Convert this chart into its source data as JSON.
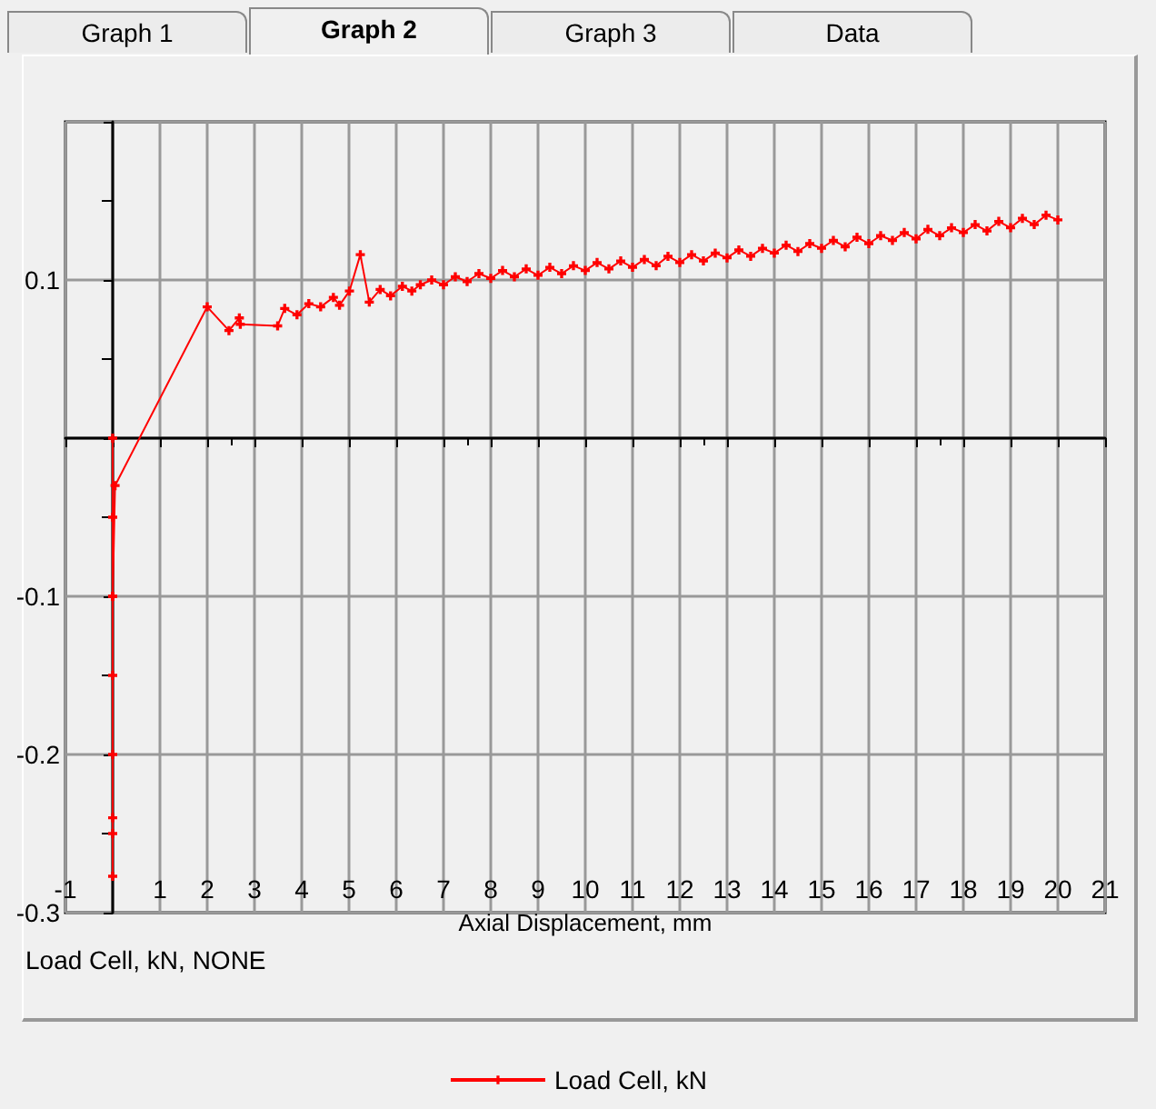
{
  "chart_data": {
    "type": "line",
    "xlabel": "Axial Displacement, mm",
    "ylabel": "Load Cell, kN, NONE",
    "annotations": [
      "Graph 1",
      "Graph 2",
      "Graph 3",
      "Data"
    ],
    "xlim": [
      -1,
      21
    ],
    "xticks": [
      -1,
      {
        "value": 0,
        "label": null
      },
      1,
      2,
      3,
      4,
      5,
      6,
      7,
      8,
      9,
      10,
      11,
      12,
      13,
      14,
      15,
      16,
      17,
      18,
      19,
      20,
      21
    ],
    "ylim": [
      -0.3,
      0.2
    ],
    "yticks": [
      {
        "value": -0.3,
        "label": "-0.3"
      },
      {
        "value": -0.2,
        "label": "-0.2"
      },
      {
        "value": -0.1,
        "label": "-0.1"
      },
      {
        "value": 0,
        "label": null
      },
      0.1,
      {
        "value": 0.2,
        "label": null
      }
    ],
    "grid": true,
    "legend": "bottom",
    "marker": "cross",
    "line_style": "solid",
    "series": [
      {
        "name": "Load Cell, kN",
        "color": "#ff0000",
        "x": [
          0,
          0,
          0,
          0,
          0,
          0,
          0,
          0,
          0,
          0.05,
          2,
          2.46,
          2.68,
          2.7,
          3.49,
          3.64,
          3.9,
          4.15,
          4.4,
          4.67,
          4.8,
          5.01,
          5.24,
          5.43,
          5.66,
          5.88,
          6.13,
          6.33,
          6.51,
          6.75,
          7.0,
          7.25,
          7.5,
          7.75,
          8.0,
          8.25,
          8.5,
          8.75,
          9.0,
          9.25,
          9.5,
          9.75,
          10.0,
          10.25,
          10.5,
          10.75,
          11.0,
          11.25,
          11.5,
          11.75,
          12.0,
          12.25,
          12.5,
          12.75,
          13.0,
          13.25,
          13.5,
          13.75,
          14.0,
          14.25,
          14.5,
          14.75,
          15.0,
          15.25,
          15.5,
          15.75,
          16.0,
          16.25,
          16.5,
          16.75,
          17.0,
          17.25,
          17.5,
          17.75,
          18.0,
          18.25,
          18.5,
          18.75,
          19.0,
          19.25,
          19.5,
          19.75,
          20.0
        ],
        "values": [
          0,
          -0.05,
          -0.1,
          -0.15,
          -0.2,
          -0.24,
          -0.277,
          -0.25,
          -0.1,
          -0.03,
          0.083,
          0.068,
          0.076,
          0.072,
          0.071,
          0.082,
          0.078,
          0.085,
          0.083,
          0.089,
          0.084,
          0.093,
          0.116,
          0.086,
          0.094,
          0.09,
          0.096,
          0.093,
          0.097,
          0.1,
          0.097,
          0.102,
          0.099,
          0.104,
          0.101,
          0.106,
          0.102,
          0.107,
          0.103,
          0.108,
          0.104,
          0.109,
          0.106,
          0.111,
          0.107,
          0.112,
          0.108,
          0.113,
          0.109,
          0.115,
          0.111,
          0.116,
          0.112,
          0.117,
          0.114,
          0.119,
          0.115,
          0.12,
          0.117,
          0.122,
          0.118,
          0.123,
          0.12,
          0.125,
          0.121,
          0.127,
          0.123,
          0.128,
          0.125,
          0.13,
          0.126,
          0.132,
          0.128,
          0.133,
          0.13,
          0.135,
          0.131,
          0.137,
          0.133,
          0.139,
          0.135,
          0.141,
          0.138
        ]
      }
    ]
  }
}
